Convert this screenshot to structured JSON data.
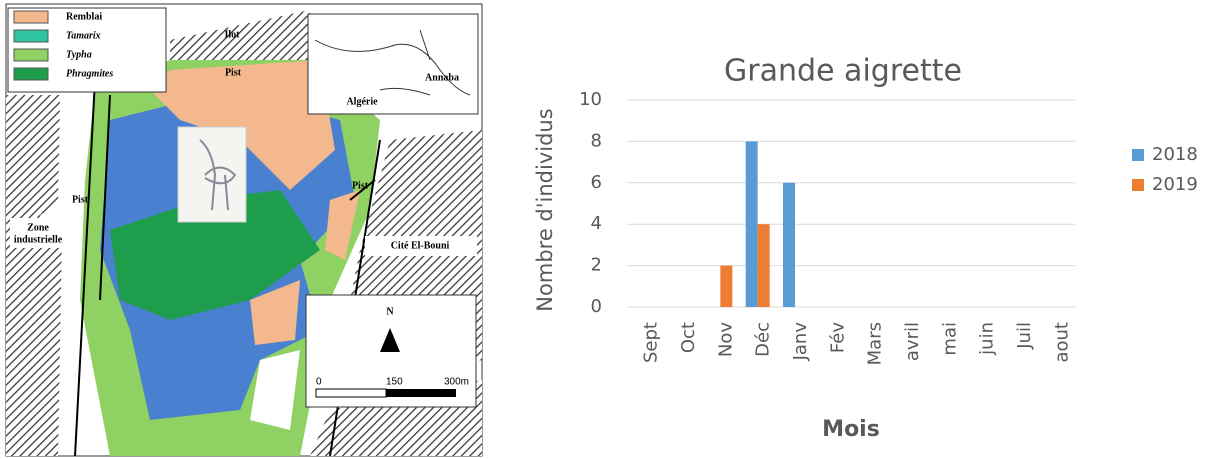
{
  "map": {
    "legend": [
      {
        "name": "Remblai",
        "color": "#f4b88e"
      },
      {
        "name": "Tamarix",
        "color": "#2fc4a0"
      },
      {
        "name": "Typha",
        "color": "#8fd162"
      },
      {
        "name": "Phragmites",
        "color": "#1e9e4c"
      }
    ],
    "labels": {
      "ilot": "Ilot",
      "pist_top": "Pist",
      "pist_left": "Pist",
      "pist_right": "Pist",
      "zone_1": "Zone",
      "zone_2": "industrielle",
      "cite": "Cité El-Bouni",
      "algerie": "Algérie",
      "annaba": "Annaba"
    },
    "north": "N",
    "scale": [
      "0",
      "150",
      "300m"
    ]
  },
  "chart_data": {
    "type": "bar",
    "title": "Grande aigrette",
    "xlabel": "Mois",
    "ylabel": "Nombre d'individus",
    "categories": [
      "Sept",
      "Oct",
      "Nov",
      "Déc",
      "Janv",
      "Fév",
      "Mars",
      "avril",
      "mai",
      "juin",
      "Juil",
      "aout"
    ],
    "series": [
      {
        "name": "2018",
        "color": "#5b9bd5",
        "values": [
          0,
          0,
          0,
          8,
          6,
          0,
          0,
          0,
          0,
          0,
          0,
          0
        ]
      },
      {
        "name": "2019",
        "color": "#ed7d31",
        "values": [
          0,
          0,
          2,
          4,
          0,
          0,
          0,
          0,
          0,
          0,
          0,
          0
        ]
      }
    ],
    "ylim": [
      0,
      10
    ],
    "yticks": [
      0,
      2,
      4,
      6,
      8,
      10
    ],
    "grid": true,
    "legend": "right"
  }
}
